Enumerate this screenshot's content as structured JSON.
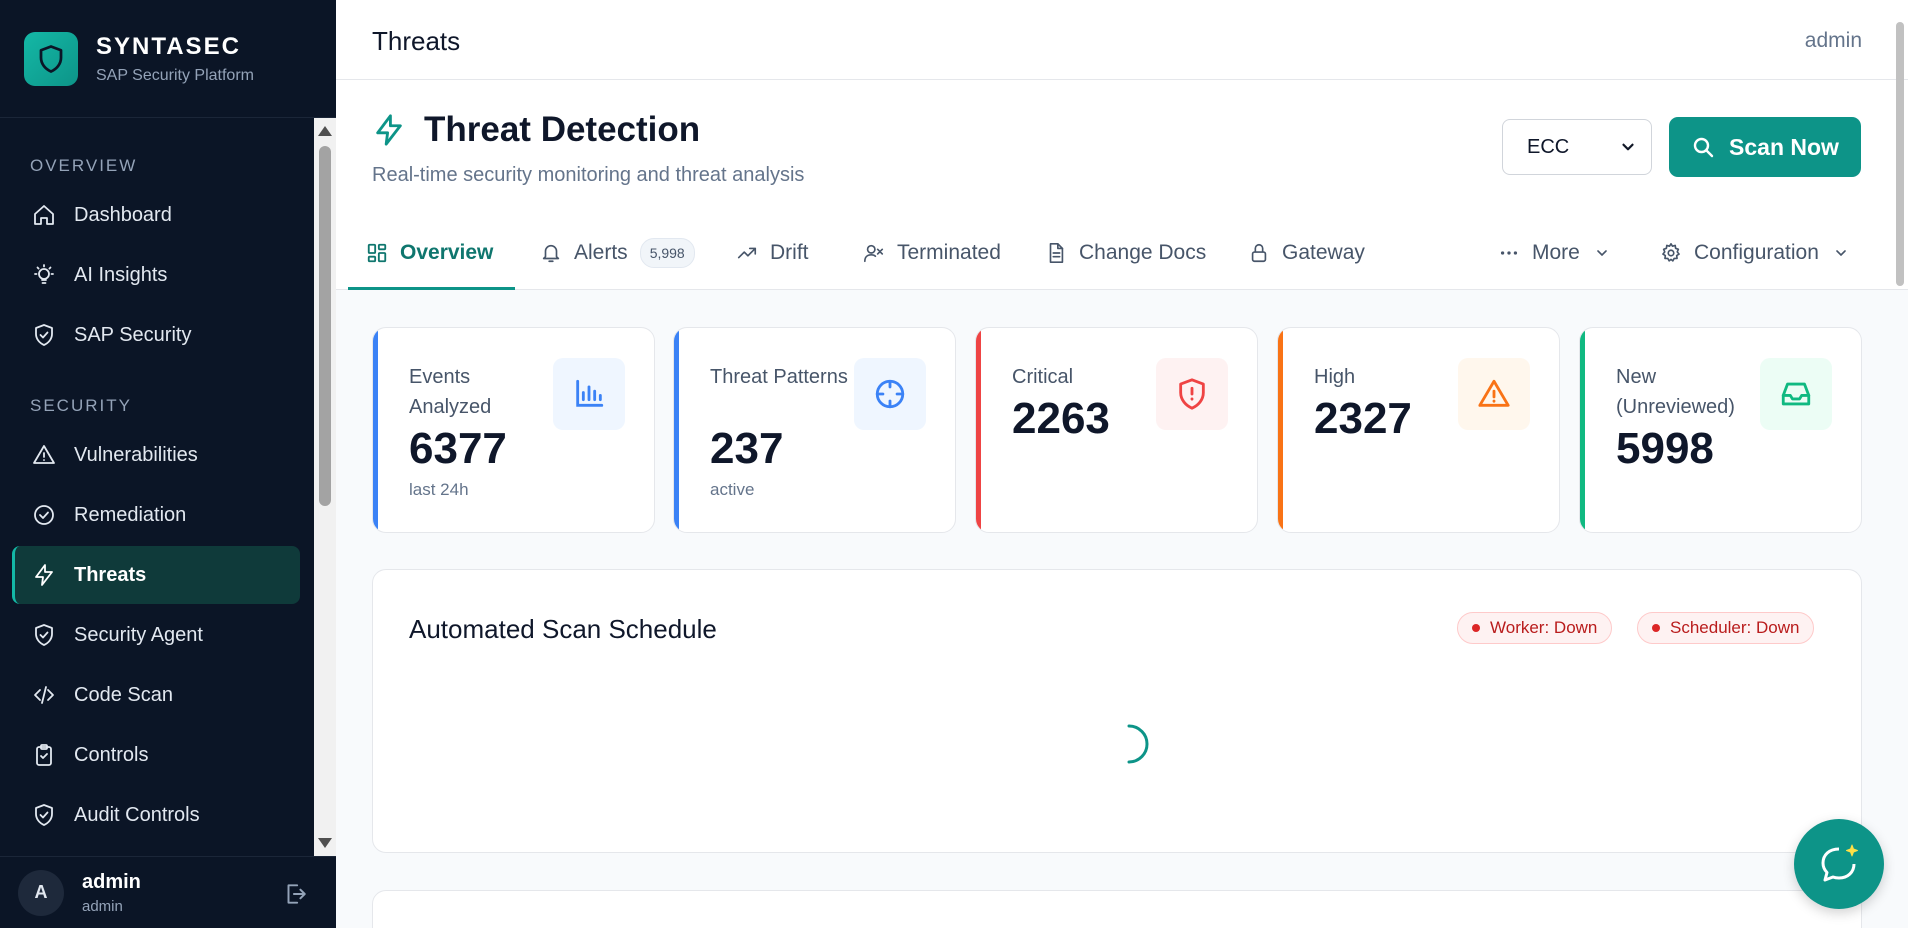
{
  "brand": {
    "name": "SYNTASEC",
    "subtitle": "SAP Security Platform",
    "logo_icon": "shield-icon"
  },
  "sidebar": {
    "sections": [
      {
        "title": "OVERVIEW",
        "items": [
          {
            "label": "Dashboard",
            "icon": "home-icon"
          },
          {
            "label": "AI Insights",
            "icon": "lightbulb-icon"
          },
          {
            "label": "SAP Security",
            "icon": "shield-check-icon"
          }
        ]
      },
      {
        "title": "SECURITY",
        "items": [
          {
            "label": "Vulnerabilities",
            "icon": "warning-icon"
          },
          {
            "label": "Remediation",
            "icon": "check-circle-icon"
          },
          {
            "label": "Threats",
            "icon": "bolt-icon",
            "active": true
          },
          {
            "label": "Security Agent",
            "icon": "shield-check-icon"
          },
          {
            "label": "Code Scan",
            "icon": "code-icon"
          },
          {
            "label": "Controls",
            "icon": "clipboard-check-icon"
          },
          {
            "label": "Audit Controls",
            "icon": "shield-check-icon"
          }
        ]
      }
    ]
  },
  "user": {
    "initial": "A",
    "name": "admin",
    "role": "admin"
  },
  "topbar": {
    "title": "Threats",
    "user": "admin"
  },
  "header": {
    "title": "Threat Detection",
    "subtitle": "Real-time security monitoring and threat analysis",
    "system_select": "ECC",
    "scan_label": "Scan Now"
  },
  "tabs": [
    {
      "label": "Overview",
      "icon": "grid-icon",
      "active": true
    },
    {
      "label": "Alerts",
      "icon": "bell-icon",
      "badge": "5,998"
    },
    {
      "label": "Drift",
      "icon": "trending-up-icon"
    },
    {
      "label": "Terminated",
      "icon": "user-x-icon"
    },
    {
      "label": "Change Docs",
      "icon": "document-icon"
    },
    {
      "label": "Gateway",
      "icon": "lock-icon"
    },
    {
      "label": "More",
      "icon": "ellipsis-icon"
    },
    {
      "label": "Configuration",
      "icon": "gear-icon"
    }
  ],
  "stats": [
    {
      "label": "Events Analyzed",
      "value": "6377",
      "note": "last 24h",
      "icon": "bar-chart-icon",
      "color": "#3b82f6"
    },
    {
      "label": "Threat Patterns",
      "value": "237",
      "note": "active",
      "icon": "crosshair-icon",
      "color": "#3b82f6"
    },
    {
      "label": "Critical",
      "value": "2263",
      "icon": "shield-alert-icon",
      "color": "#ef4444"
    },
    {
      "label": "High",
      "value": "2327",
      "icon": "warning-icon",
      "color": "#f97316"
    },
    {
      "label": "New (Unreviewed)",
      "value": "5998",
      "icon": "inbox-icon",
      "color": "#10b981"
    }
  ],
  "schedule": {
    "title": "Automated Scan Schedule",
    "worker_status": "Worker: Down",
    "scheduler_status": "Scheduler: Down"
  }
}
